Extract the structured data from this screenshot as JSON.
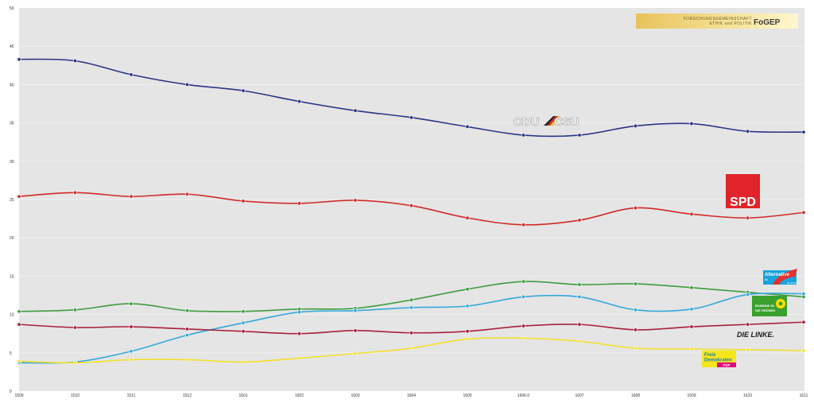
{
  "chart_data": {
    "type": "line",
    "title": "",
    "xlabel": "",
    "ylabel": "",
    "ylim": [
      0,
      50
    ],
    "yticks": [
      0,
      5,
      10,
      15,
      20,
      25,
      30,
      35,
      40,
      45,
      50
    ],
    "categories": [
      "1509",
      "1510",
      "1511",
      "1512",
      "1601",
      "1602",
      "1603",
      "1604",
      "1605",
      "1606.0",
      "1607",
      "1608",
      "1609",
      "1610",
      "1611"
    ],
    "series": [
      {
        "name": "CDU/CSU",
        "color": "#2b3585",
        "values": [
          43.3,
          43.1,
          41.3,
          40.0,
          39.2,
          37.8,
          36.6,
          35.7,
          34.5,
          33.4,
          33.4,
          34.6,
          34.9,
          33.9,
          33.8
        ]
      },
      {
        "name": "SPD",
        "color": "#d02a2a",
        "values": [
          25.4,
          25.9,
          25.4,
          25.7,
          24.8,
          24.5,
          24.9,
          24.2,
          22.6,
          21.7,
          22.3,
          23.9,
          23.1,
          22.6,
          23.3
        ]
      },
      {
        "name": "Bündnis 90 / Die Grünen",
        "color": "#3f9c40",
        "values": [
          10.4,
          10.6,
          11.4,
          10.5,
          10.4,
          10.7,
          10.8,
          11.9,
          13.3,
          14.3,
          13.9,
          14.0,
          13.5,
          12.9,
          12.3
        ]
      },
      {
        "name": "AfD",
        "color": "#35a9d9",
        "values": [
          3.7,
          3.8,
          5.2,
          7.3,
          8.9,
          10.3,
          10.5,
          10.9,
          11.1,
          12.3,
          12.3,
          10.6,
          10.7,
          12.6,
          12.7
        ]
      },
      {
        "name": "Die Linke",
        "color": "#a8203a",
        "values": [
          8.7,
          8.3,
          8.4,
          8.1,
          7.8,
          7.5,
          7.9,
          7.6,
          7.8,
          8.5,
          8.7,
          8.0,
          8.4,
          8.7,
          9.0
        ]
      },
      {
        "name": "FDP",
        "color": "#f2e130",
        "values": [
          3.9,
          3.7,
          4.1,
          4.1,
          3.8,
          4.3,
          4.9,
          5.6,
          6.8,
          6.9,
          6.5,
          5.6,
          5.5,
          5.4,
          5.3
        ]
      }
    ]
  },
  "logos": {
    "fogep_line1": "FORSCHUNGSGEMEINSCHAFT",
    "fogep_line2": "ETHIK und POLITIK",
    "fogep_mark": "FoGEP",
    "cdu": "CDU",
    "csu": "CSU",
    "spd": "SPD",
    "afd_line1": "Alternative",
    "afd_line2": "für",
    "afd_line3": "Deutschland",
    "gruene_line1": "BÜNDNIS 90",
    "gruene_line2": "DIE GRÜNEN",
    "linke": "DIE LINKE.",
    "fdp_line1": "Freie",
    "fdp_line2": "Demokraten",
    "fdp_line3": "FDP"
  }
}
